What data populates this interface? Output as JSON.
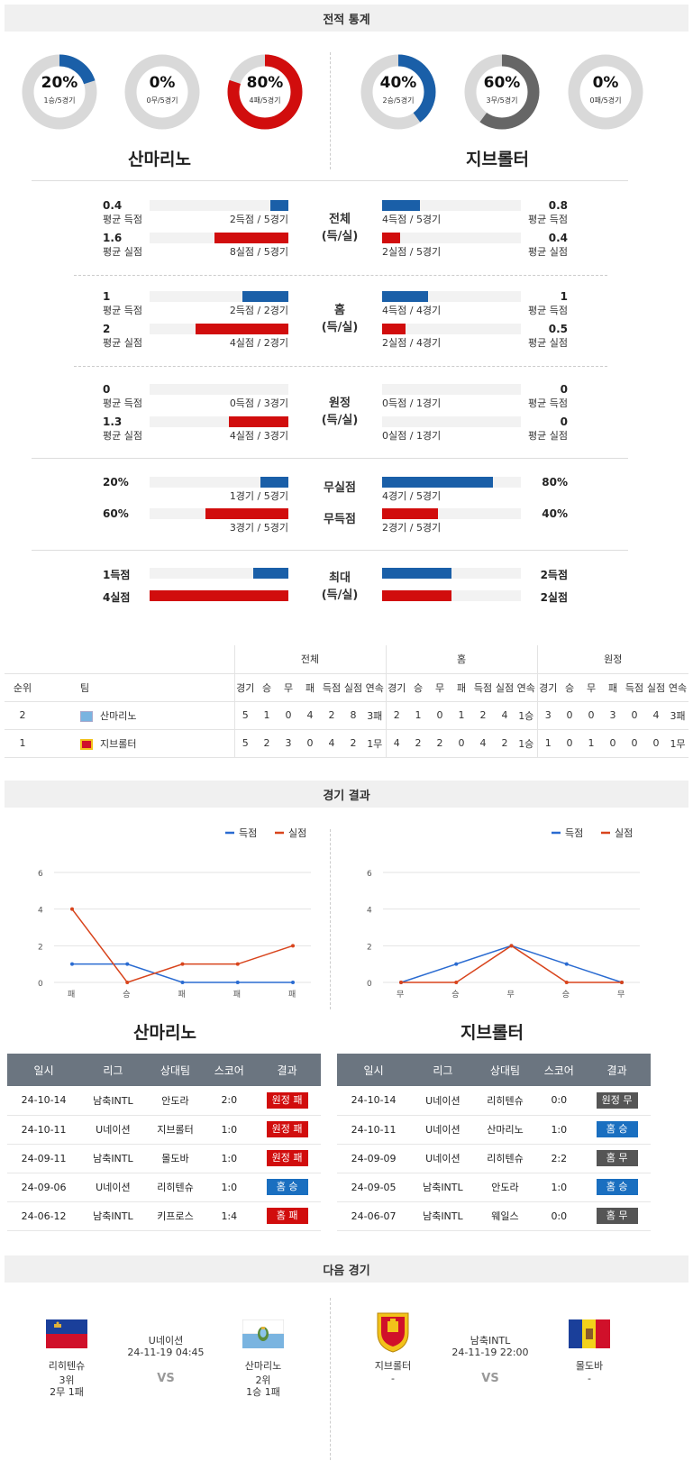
{
  "sections": {
    "stats": "전적 통계",
    "results": "경기 결과",
    "next": "다음 경기"
  },
  "home": {
    "name": "산마리노",
    "donuts": [
      {
        "pct": "20%",
        "sub": "1승/5경기",
        "value": 0.2,
        "color": "#1a5fa8"
      },
      {
        "pct": "0%",
        "sub": "0무/5경기",
        "value": 0,
        "color": "#666666"
      },
      {
        "pct": "80%",
        "sub": "4패/5경기",
        "value": 0.8,
        "color": "#d10d0d"
      }
    ]
  },
  "away": {
    "name": "지브롤터",
    "donuts": [
      {
        "pct": "40%",
        "sub": "2승/5경기",
        "value": 0.4,
        "color": "#1a5fa8"
      },
      {
        "pct": "60%",
        "sub": "3무/5경기",
        "value": 0.6,
        "color": "#666666"
      },
      {
        "pct": "0%",
        "sub": "0패/5경기",
        "value": 0,
        "color": "#d10d0d"
      }
    ]
  },
  "stat_groups": [
    {
      "center": [
        "전체",
        "(득/실)"
      ],
      "rows": [
        {
          "l_val": "0.4",
          "l_lbl": "평균 득점",
          "l_txt": "2득점 / 5경기",
          "l_ratio": 0.13,
          "r_val": "0.8",
          "r_lbl": "평균 득점",
          "r_txt": "4득점 / 5경기",
          "r_ratio": 0.27,
          "color": "blue"
        },
        {
          "l_val": "1.6",
          "l_lbl": "평균 실점",
          "l_txt": "8실점 / 5경기",
          "l_ratio": 0.53,
          "r_val": "0.4",
          "r_lbl": "평균 실점",
          "r_txt": "2실점 / 5경기",
          "r_ratio": 0.13,
          "color": "red"
        }
      ]
    },
    {
      "center": [
        "홈",
        "(득/실)"
      ],
      "rows": [
        {
          "l_val": "1",
          "l_lbl": "평균 득점",
          "l_txt": "2득점 / 2경기",
          "l_ratio": 0.33,
          "r_val": "1",
          "r_lbl": "평균 득점",
          "r_txt": "4득점 / 4경기",
          "r_ratio": 0.33,
          "color": "blue"
        },
        {
          "l_val": "2",
          "l_lbl": "평균 실점",
          "l_txt": "4실점 / 2경기",
          "l_ratio": 0.67,
          "r_val": "0.5",
          "r_lbl": "평균 실점",
          "r_txt": "2실점 / 4경기",
          "r_ratio": 0.17,
          "color": "red"
        }
      ]
    },
    {
      "center": [
        "원정",
        "(득/실)"
      ],
      "rows": [
        {
          "l_val": "0",
          "l_lbl": "평균 득점",
          "l_txt": "0득점 / 3경기",
          "l_ratio": 0,
          "r_val": "0",
          "r_lbl": "평균 득점",
          "r_txt": "0득점 / 1경기",
          "r_ratio": 0,
          "color": "blue"
        },
        {
          "l_val": "1.3",
          "l_lbl": "평균 실점",
          "l_txt": "4실점 / 3경기",
          "l_ratio": 0.43,
          "r_val": "0",
          "r_lbl": "평균 실점",
          "r_txt": "0실점 / 1경기",
          "r_ratio": 0,
          "color": "red"
        }
      ]
    }
  ],
  "clean": {
    "center1": "무실점",
    "center2": "무득점",
    "rows": [
      {
        "l_val": "20%",
        "l_txt": "1경기 / 5경기",
        "l_ratio": 0.2,
        "r_val": "80%",
        "r_txt": "4경기 / 5경기",
        "r_ratio": 0.8,
        "color": "blue"
      },
      {
        "l_val": "60%",
        "l_txt": "3경기 / 5경기",
        "l_ratio": 0.6,
        "r_val": "40%",
        "r_txt": "2경기 / 5경기",
        "r_ratio": 0.4,
        "color": "red"
      }
    ]
  },
  "max": {
    "center": [
      "최대",
      "(득/실)"
    ],
    "rows": [
      {
        "l_val": "1득점",
        "l_ratio": 0.25,
        "r_val": "2득점",
        "r_ratio": 0.5,
        "color": "blue"
      },
      {
        "l_val": "4실점",
        "l_ratio": 1.0,
        "r_val": "2실점",
        "r_ratio": 0.5,
        "color": "red"
      }
    ]
  },
  "standings": {
    "groups": [
      "전체",
      "홈",
      "원정"
    ],
    "head": [
      "순위",
      "팀"
    ],
    "cols": [
      "경기",
      "승",
      "무",
      "패",
      "득점",
      "실점",
      "연속"
    ],
    "rows": [
      {
        "rank": "2",
        "team": "산마리노",
        "vals": [
          "5",
          "1",
          "0",
          "4",
          "2",
          "8",
          "3패",
          "2",
          "1",
          "0",
          "1",
          "2",
          "4",
          "1승",
          "3",
          "0",
          "0",
          "3",
          "0",
          "4",
          "3패"
        ]
      },
      {
        "rank": "1",
        "team": "지브롤터",
        "vals": [
          "5",
          "2",
          "3",
          "0",
          "4",
          "2",
          "1무",
          "4",
          "2",
          "2",
          "0",
          "4",
          "2",
          "1승",
          "1",
          "0",
          "1",
          "0",
          "0",
          "0",
          "1무"
        ]
      }
    ]
  },
  "chart_data": [
    {
      "type": "line",
      "categories": [
        "패",
        "승",
        "패",
        "패",
        "패"
      ],
      "series": [
        {
          "name": "득점",
          "values": [
            1,
            1,
            0,
            0,
            0
          ],
          "color": "#2a6bd1"
        },
        {
          "name": "실점",
          "values": [
            4,
            0,
            1,
            1,
            2
          ],
          "color": "#d8441c"
        }
      ],
      "ylim": [
        0,
        6
      ],
      "yticks": [
        "0",
        "2",
        "4",
        "6"
      ]
    },
    {
      "type": "line",
      "categories": [
        "무",
        "승",
        "무",
        "승",
        "무"
      ],
      "series": [
        {
          "name": "득점",
          "values": [
            0,
            1,
            2,
            1,
            0
          ],
          "color": "#2a6bd1"
        },
        {
          "name": "실점",
          "values": [
            0,
            0,
            2,
            0,
            0
          ],
          "color": "#d8441c"
        }
      ],
      "ylim": [
        0,
        6
      ],
      "yticks": [
        "0",
        "2",
        "4",
        "6"
      ]
    }
  ],
  "results_head": [
    "일시",
    "리그",
    "상대팀",
    "스코어",
    "결과"
  ],
  "home_results": [
    {
      "date": "24-10-14",
      "league": "남축INTL",
      "opp": "안도라",
      "score": "2:0",
      "result": "원정 패",
      "cls": "b-red"
    },
    {
      "date": "24-10-11",
      "league": "U네이션",
      "opp": "지브롤터",
      "score": "1:0",
      "result": "원정 패",
      "cls": "b-red"
    },
    {
      "date": "24-09-11",
      "league": "남축INTL",
      "opp": "몰도바",
      "score": "1:0",
      "result": "원정 패",
      "cls": "b-red"
    },
    {
      "date": "24-09-06",
      "league": "U네이션",
      "opp": "리히텐슈",
      "score": "1:0",
      "result": "홈 승",
      "cls": "b-blue"
    },
    {
      "date": "24-06-12",
      "league": "남축INTL",
      "opp": "키프로스",
      "score": "1:4",
      "result": "홈 패",
      "cls": "b-red"
    }
  ],
  "away_results": [
    {
      "date": "24-10-14",
      "league": "U네이션",
      "opp": "리히텐슈",
      "score": "0:0",
      "result": "원정 무",
      "cls": "b-grey"
    },
    {
      "date": "24-10-11",
      "league": "U네이션",
      "opp": "산마리노",
      "score": "1:0",
      "result": "홈 승",
      "cls": "b-blue"
    },
    {
      "date": "24-09-09",
      "league": "U네이션",
      "opp": "리히텐슈",
      "score": "2:2",
      "result": "홈 무",
      "cls": "b-grey"
    },
    {
      "date": "24-09-05",
      "league": "남축INTL",
      "opp": "안도라",
      "score": "1:0",
      "result": "홈 승",
      "cls": "b-blue"
    },
    {
      "date": "24-06-07",
      "league": "남축INTL",
      "opp": "웨일스",
      "score": "0:0",
      "result": "홈 무",
      "cls": "b-grey"
    }
  ],
  "next": [
    {
      "league": "U네이션",
      "time": "24-11-19 04:45",
      "vs": "VS",
      "t1": "리히텐슈",
      "t1_rank": "3위",
      "t1_rec": "2무 1패",
      "t2": "산마리노",
      "t2_rank": "2위",
      "t2_rec": "1승 1패"
    },
    {
      "league": "남축INTL",
      "time": "24-11-19 22:00",
      "vs": "VS",
      "t1": "지브롤터",
      "t1_rank": "-",
      "t1_rec": "",
      "t2": "몰도바",
      "t2_rank": "-",
      "t2_rec": ""
    }
  ]
}
